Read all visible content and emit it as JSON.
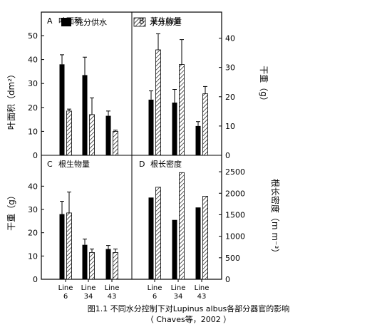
{
  "legend": {
    "solid_label": "充分供水",
    "hatched_label": "水分胁迫"
  },
  "axes": {
    "left_top_label": "叶面积（dm²）",
    "right_top_label": "干重（g）",
    "left_bottom_label": "干重（g）",
    "right_bottom_label": "根长密度（m m⁻³）"
  },
  "caption": {
    "line1": "图1.1  不同水分控制下对Lupinus albus各部分器官的影响",
    "line2": "（ Chaves等，2002 ）"
  },
  "colors": {
    "solid": "#000000",
    "hatch": "#000000",
    "frame": "#000000"
  },
  "chart_data": [
    {
      "panel": "A",
      "title": "叶面积",
      "type": "bar",
      "categories": [
        "Line 6",
        "Line 34",
        "Line 43"
      ],
      "series": [
        {
          "name": "充分供水",
          "values": [
            38,
            33.5,
            16.5
          ],
          "errors": [
            4,
            7.5,
            2
          ]
        },
        {
          "name": "水分胁迫",
          "values": [
            18.5,
            17,
            10
          ],
          "errors": [
            0.8,
            7,
            0.5
          ]
        }
      ],
      "ylim": [
        0,
        50
      ],
      "yticks": [
        0,
        10,
        20,
        30,
        40,
        50
      ],
      "yaxis_side": "left"
    },
    {
      "panel": "B",
      "title": "茎生物量",
      "type": "bar",
      "categories": [
        "Line 6",
        "Line 34",
        "Line 43"
      ],
      "series": [
        {
          "name": "充分供水",
          "values": [
            19,
            18,
            10
          ],
          "errors": [
            3,
            4.5,
            1.5
          ]
        },
        {
          "name": "水分胁迫",
          "values": [
            36,
            31,
            21
          ],
          "errors": [
            5.5,
            8.5,
            2.5
          ]
        }
      ],
      "ylim": [
        0,
        45
      ],
      "yticks": [
        0,
        10,
        20,
        30,
        40
      ],
      "yaxis_side": "right"
    },
    {
      "panel": "C",
      "title": "根生物量",
      "type": "bar",
      "categories": [
        "Line 6",
        "Line 34",
        "Line 43"
      ],
      "series": [
        {
          "name": "充分供水",
          "values": [
            28,
            14.8,
            13
          ],
          "errors": [
            5.5,
            2.5,
            1.5
          ]
        },
        {
          "name": "水分胁迫",
          "values": [
            28.5,
            11.5,
            11.5
          ],
          "errors": [
            9,
            1.5,
            1.5
          ]
        }
      ],
      "ylim": [
        0,
        45
      ],
      "yticks": [
        0,
        10,
        20,
        30,
        40
      ],
      "yaxis_side": "left"
    },
    {
      "panel": "D",
      "title": "根长密度",
      "type": "bar",
      "categories": [
        "Line 6",
        "Line 34",
        "Line 43"
      ],
      "series": [
        {
          "name": "充分供水",
          "values": [
            1900,
            1380,
            1670
          ],
          "errors": [
            0,
            0,
            0
          ]
        },
        {
          "name": "水分胁迫",
          "values": [
            2140,
            2480,
            1930
          ],
          "errors": [
            0,
            0,
            0
          ]
        }
      ],
      "ylim": [
        0,
        2700
      ],
      "yticks": [
        0,
        500,
        1000,
        1500,
        2000,
        2500
      ],
      "yaxis_side": "right"
    }
  ]
}
